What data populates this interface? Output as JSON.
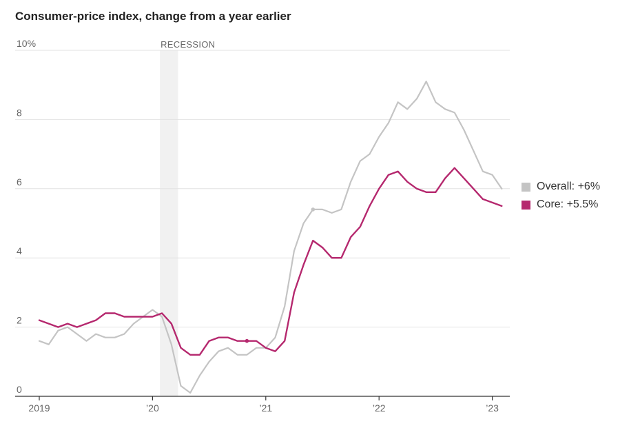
{
  "chart_data": {
    "type": "line",
    "title": "Consumer-price index, change from a year earlier",
    "xlabel": "",
    "ylabel": "",
    "ylim": [
      0,
      10
    ],
    "y_ticks": [
      0,
      2,
      4,
      6,
      8,
      10
    ],
    "y_tick_labels": [
      "0",
      "2",
      "4",
      "6",
      "8",
      "10%"
    ],
    "x_ticks": [
      {
        "value": "2019-01",
        "label": "2019"
      },
      {
        "value": "2020-01",
        "label": "’20"
      },
      {
        "value": "2021-01",
        "label": "’21"
      },
      {
        "value": "2022-01",
        "label": "’22"
      },
      {
        "value": "2023-01",
        "label": "’23"
      }
    ],
    "x_range": [
      "2019-01",
      "2023-02"
    ],
    "grid": "horizontal",
    "legend_placement": "right",
    "recession": {
      "label": "RECESSION",
      "start": "2020-02",
      "end": "2020-04"
    },
    "x": [
      "2019-01",
      "2019-02",
      "2019-03",
      "2019-04",
      "2019-05",
      "2019-06",
      "2019-07",
      "2019-08",
      "2019-09",
      "2019-10",
      "2019-11",
      "2019-12",
      "2020-01",
      "2020-02",
      "2020-03",
      "2020-04",
      "2020-05",
      "2020-06",
      "2020-07",
      "2020-08",
      "2020-09",
      "2020-10",
      "2020-11",
      "2020-12",
      "2021-01",
      "2021-02",
      "2021-03",
      "2021-04",
      "2021-05",
      "2021-06",
      "2021-07",
      "2021-08",
      "2021-09",
      "2021-10",
      "2021-11",
      "2021-12",
      "2022-01",
      "2022-02",
      "2022-03",
      "2022-04",
      "2022-05",
      "2022-06",
      "2022-07",
      "2022-08",
      "2022-09",
      "2022-10",
      "2022-11",
      "2022-12",
      "2023-01",
      "2023-02"
    ],
    "series": [
      {
        "name": "Overall",
        "legend_label": "Overall: +6%",
        "color": "#c4c4c4",
        "marker_index": 29,
        "values": [
          1.6,
          1.5,
          1.9,
          2.0,
          1.8,
          1.6,
          1.8,
          1.7,
          1.7,
          1.8,
          2.1,
          2.3,
          2.5,
          2.3,
          1.5,
          0.3,
          0.1,
          0.6,
          1.0,
          1.3,
          1.4,
          1.2,
          1.2,
          1.4,
          1.4,
          1.7,
          2.6,
          4.2,
          5.0,
          5.4,
          5.4,
          5.3,
          5.4,
          6.2,
          6.8,
          7.0,
          7.5,
          7.9,
          8.5,
          8.3,
          8.6,
          9.1,
          8.5,
          8.3,
          8.2,
          7.7,
          7.1,
          6.5,
          6.4,
          6.0
        ]
      },
      {
        "name": "Core",
        "legend_label": "Core: +5.5%",
        "color": "#b5286e",
        "marker_index": 22,
        "values": [
          2.2,
          2.1,
          2.0,
          2.1,
          2.0,
          2.1,
          2.2,
          2.4,
          2.4,
          2.3,
          2.3,
          2.3,
          2.3,
          2.4,
          2.1,
          1.4,
          1.2,
          1.2,
          1.6,
          1.7,
          1.7,
          1.6,
          1.6,
          1.6,
          1.4,
          1.3,
          1.6,
          3.0,
          3.8,
          4.5,
          4.3,
          4.0,
          4.0,
          4.6,
          4.9,
          5.5,
          6.0,
          6.4,
          6.5,
          6.2,
          6.0,
          5.9,
          5.9,
          6.3,
          6.6,
          6.3,
          6.0,
          5.7,
          5.6,
          5.5
        ]
      }
    ]
  }
}
